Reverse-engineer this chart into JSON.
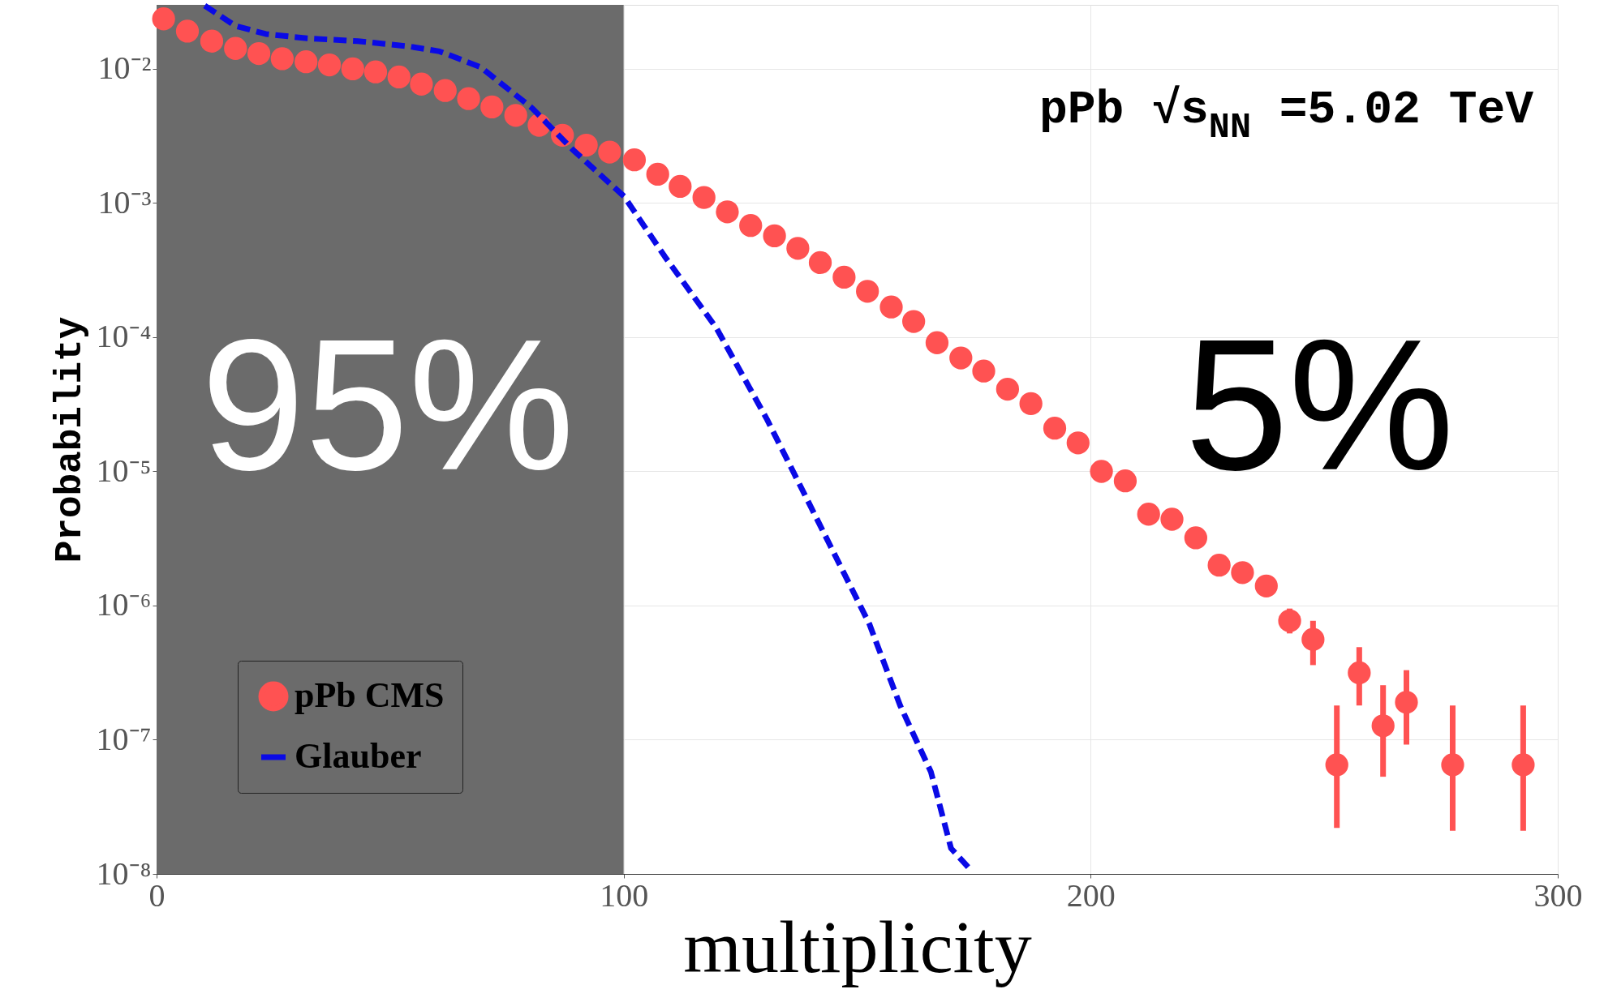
{
  "chart_data": {
    "type": "scatter",
    "title": "pPb √s$_{NN}$ =5.02 TeV",
    "xlabel": "multiplicity",
    "ylabel": "Probability",
    "log": "y",
    "grid": true,
    "legend": "bottom left",
    "xlim": [
      0,
      300
    ],
    "xticks": [
      0,
      100,
      200,
      300
    ],
    "ylim": [
      1e-08,
      0.03
    ],
    "yticks": [
      {
        "value": 1e-08,
        "label": "10⁻⁸"
      },
      {
        "value": 1e-07,
        "label": "10⁻⁷"
      },
      {
        "value": 1e-06,
        "label": "10⁻⁶"
      },
      {
        "value": 1e-05,
        "label": "10⁻⁵"
      },
      {
        "value": 0.0001,
        "label": "10⁻⁴"
      },
      {
        "value": 0.001,
        "label": "10⁻³"
      },
      {
        "value": 0.01,
        "label": "10⁻²"
      }
    ],
    "bands": [
      {
        "axis": "x",
        "from": 0,
        "to": 100,
        "color": "#6b6b6b"
      }
    ],
    "annotations": [
      "95%",
      "5%"
    ],
    "series": [
      {
        "name": "pPb CMS",
        "color": "#ff5252",
        "x": [
          1.5,
          6.6,
          11.8,
          16.9,
          21.9,
          26.9,
          32,
          37,
          42,
          46.9,
          51.9,
          56.7,
          61.8,
          66.8,
          71.8,
          76.9,
          81.9,
          86.9,
          92,
          97,
          102.3,
          107.3,
          112.1,
          117.2,
          122.2,
          127.2,
          132.3,
          137.3,
          142.1,
          147.2,
          152.2,
          157.3,
          162.1,
          167.1,
          172.2,
          177.1,
          182.2,
          187.2,
          192.3,
          197.3,
          202.3,
          207.4,
          212.4,
          217.4,
          222.5,
          227.5,
          232.5,
          237.6,
          242.6,
          247.6,
          252.7,
          257.5,
          262.6,
          267.6,
          277.5,
          292.6
        ],
        "values": [
          0.0236,
          0.0191,
          0.0161,
          0.0142,
          0.013,
          0.0119,
          0.0113,
          0.0107,
          0.01,
          0.0095,
          0.0087,
          0.0077,
          0.0069,
          0.006,
          0.0052,
          0.0045,
          0.0038,
          0.0032,
          0.0027,
          0.0024,
          0.0021,
          0.00164,
          0.00133,
          0.0011,
          0.00086,
          0.00068,
          0.00057,
          0.00046,
          0.00036,
          0.00028,
          0.00022,
          0.000168,
          0.000131,
          9.1e-05,
          7e-05,
          5.6e-05,
          4.1e-05,
          3.2e-05,
          2.1e-05,
          1.63e-05,
          1e-05,
          8.5e-06,
          4.8e-06,
          4.4e-06,
          3.2e-06,
          2e-06,
          1.76e-06,
          1.4e-06,
          7.7e-07,
          5.6e-07,
          6.5e-08,
          3.15e-07,
          1.27e-07,
          1.9e-07,
          6.5e-08,
          6.5e-08
        ],
        "errors": [
          null,
          null,
          null,
          null,
          null,
          null,
          null,
          null,
          null,
          null,
          null,
          null,
          null,
          null,
          null,
          null,
          null,
          null,
          null,
          null,
          null,
          null,
          null,
          null,
          null,
          null,
          null,
          null,
          null,
          null,
          null,
          null,
          null,
          null,
          null,
          null,
          null,
          null,
          null,
          null,
          null,
          null,
          null,
          null,
          null,
          null,
          null,
          null,
          [
            6.2e-07,
            9.5e-07
          ],
          [
            3.6e-07,
            7.7e-07
          ],
          [
            2.2e-08,
            1.8e-07
          ],
          [
            1.8e-07,
            4.9e-07
          ],
          [
            5.3e-08,
            2.55e-07
          ],
          [
            9.2e-08,
            3.3e-07
          ],
          [
            2.1e-08,
            1.8e-07
          ],
          [
            2.1e-08,
            1.8e-07
          ]
        ]
      },
      {
        "name": "Glauber",
        "type": "line",
        "line_style": "dashed",
        "color": "#0a0ae6",
        "x": [
          10.3,
          16.9,
          23.4,
          32.2,
          43.1,
          54.1,
          60.6,
          69.4,
          80.4,
          89.1,
          100.1,
          108.8,
          119.8,
          130.7,
          141.7,
          152.6,
          159.2,
          165.8,
          170.1,
          174.1
        ],
        "values": [
          0.0296,
          0.0209,
          0.0182,
          0.0169,
          0.0161,
          0.0147,
          0.0135,
          0.0103,
          0.0051,
          0.0025,
          0.00112,
          0.0004,
          0.000118,
          2.44e-05,
          4.2e-06,
          7.3e-07,
          1.8e-07,
          5.75e-08,
          1.55e-08,
          1.09e-08
        ]
      }
    ]
  }
}
